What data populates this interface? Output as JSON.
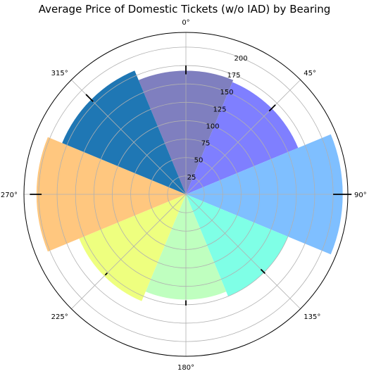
{
  "chart_data": {
    "type": "polar-bar",
    "title": "Average Price of Domestic Tickets (w/o IAD) by Bearing",
    "theta_zero": "N",
    "theta_direction": "clockwise",
    "theta_ticks": [
      "0°",
      "45°",
      "90°",
      "135°",
      "180°",
      "225°",
      "270°",
      "315°"
    ],
    "radial_ticks": [
      25,
      50,
      75,
      100,
      125,
      150,
      175,
      200
    ],
    "rmax": 220,
    "grid": true,
    "bars": [
      {
        "bearing": 0,
        "value": 168,
        "color": "#7f7fbf"
      },
      {
        "bearing": 45,
        "value": 165,
        "color": "#7f7fff"
      },
      {
        "bearing": 90,
        "value": 213,
        "color": "#7fbfff"
      },
      {
        "bearing": 135,
        "value": 150,
        "color": "#7fffe6"
      },
      {
        "bearing": 180,
        "value": 143,
        "color": "#bfffbf"
      },
      {
        "bearing": 225,
        "value": 157,
        "color": "#eeff7f"
      },
      {
        "bearing": 270,
        "value": 203,
        "color": "#ffc77f"
      },
      {
        "bearing": 315,
        "value": 182,
        "color": "#1f77b4"
      }
    ],
    "error_bars": [
      {
        "bearing": 0,
        "low": 163,
        "high": 175
      },
      {
        "bearing": 45,
        "low": 160,
        "high": 172
      },
      {
        "bearing": 90,
        "low": 200,
        "high": 225
      },
      {
        "bearing": 135,
        "low": 144,
        "high": 152
      },
      {
        "bearing": 180,
        "low": 144,
        "high": 151
      },
      {
        "bearing": 225,
        "low": 151,
        "high": 155
      },
      {
        "bearing": 270,
        "low": 196,
        "high": 212
      },
      {
        "bearing": 315,
        "low": 178,
        "high": 192
      }
    ]
  }
}
